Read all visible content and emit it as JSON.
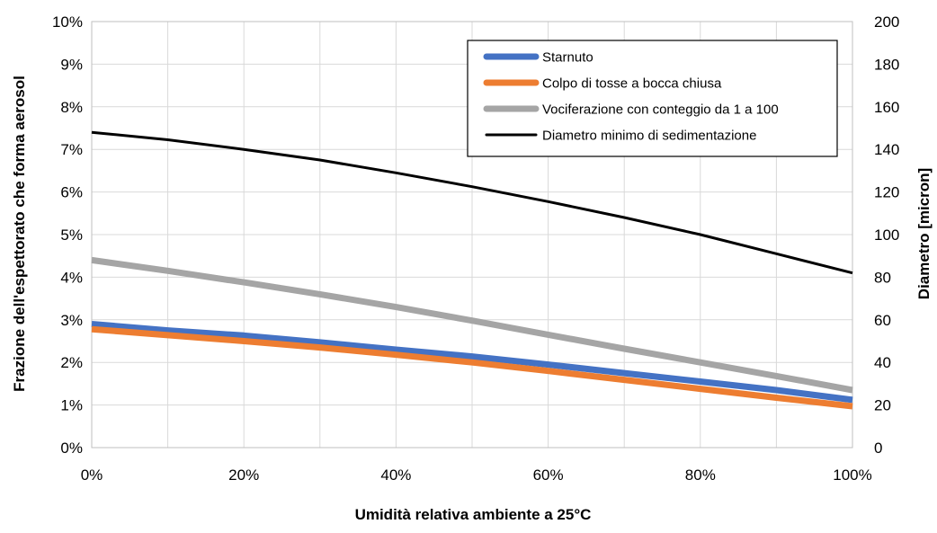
{
  "chart_data": {
    "type": "line",
    "title": "",
    "xlabel": "Umidità relativa ambiente a 25°C",
    "ylabel": "Frazione dell'espettorato che forma aerosol",
    "y2label": "Diametro [micron]",
    "x_tick_labels": [
      "0%",
      "20%",
      "40%",
      "60%",
      "80%",
      "100%"
    ],
    "y_tick_labels": [
      "0%",
      "1%",
      "2%",
      "3%",
      "4%",
      "5%",
      "6%",
      "7%",
      "8%",
      "9%",
      "10%"
    ],
    "y2_tick_labels": [
      "0",
      "20",
      "40",
      "60",
      "80",
      "100",
      "120",
      "140",
      "160",
      "180",
      "200"
    ],
    "xlim": [
      0,
      100
    ],
    "ylim": [
      0,
      10
    ],
    "y2lim": [
      0,
      200
    ],
    "grid": true,
    "legend_position": "top-right",
    "x": [
      0,
      10,
      20,
      30,
      40,
      50,
      60,
      70,
      80,
      90,
      100
    ],
    "series": [
      {
        "name": "Starnuto",
        "axis": "left",
        "color": "#4472c4",
        "width": 7,
        "values": [
          2.9,
          2.75,
          2.63,
          2.47,
          2.3,
          2.14,
          1.95,
          1.75,
          1.55,
          1.35,
          1.12
        ]
      },
      {
        "name": "Colpo di tosse a bocca chiusa",
        "axis": "left",
        "color": "#ed7d31",
        "width": 7,
        "values": [
          2.78,
          2.64,
          2.5,
          2.35,
          2.18,
          2.0,
          1.8,
          1.59,
          1.38,
          1.17,
          0.97
        ]
      },
      {
        "name": "Vociferazione con conteggio da 1 a 100",
        "axis": "left",
        "color": "#a5a5a5",
        "width": 7,
        "values": [
          4.4,
          4.15,
          3.88,
          3.6,
          3.3,
          2.98,
          2.65,
          2.32,
          2.0,
          1.68,
          1.35
        ]
      },
      {
        "name": "Diametro minimo di sedimentazione",
        "axis": "right",
        "color": "#000000",
        "width": 3,
        "values": [
          148,
          144.5,
          140,
          135,
          129,
          122.5,
          115.5,
          108,
          100,
          91,
          82
        ]
      }
    ]
  }
}
